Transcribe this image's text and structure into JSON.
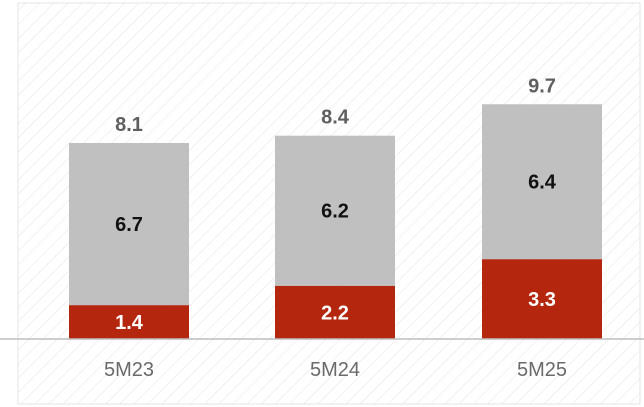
{
  "chart_data": {
    "type": "bar",
    "stacked": true,
    "categories": [
      "5M23",
      "5M24",
      "5M25"
    ],
    "series": [
      {
        "values": [
          1.4,
          2.2,
          3.3
        ],
        "color": "#b5260f"
      },
      {
        "values": [
          6.7,
          6.2,
          6.4
        ],
        "color": "#bfbfbf",
        "texture": "concrete"
      }
    ],
    "totals": [
      "8.1",
      "8.4",
      "9.7"
    ],
    "segment_labels": {
      "bottom": [
        "1.4",
        "2.2",
        "3.3"
      ],
      "top": [
        "6.7",
        "6.2",
        "6.4"
      ]
    },
    "title": "",
    "xlabel": "",
    "ylabel": "",
    "ylim": [
      0,
      12
    ],
    "grid": false,
    "legend": "none",
    "background_pattern": "diagonal-hatch"
  }
}
